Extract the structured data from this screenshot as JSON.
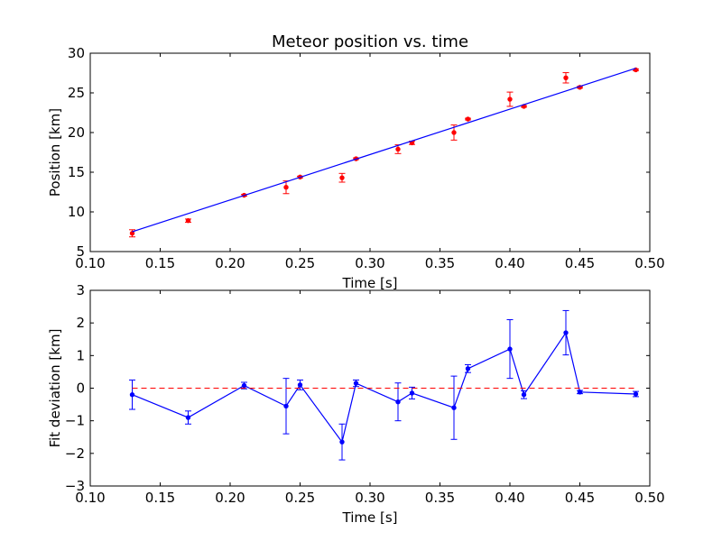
{
  "chart_data": [
    {
      "type": "scatter",
      "title": "Meteor position vs. time",
      "xlabel": "Time [s]",
      "ylabel": "Position [km]",
      "xlim": [
        0.1,
        0.5
      ],
      "ylim": [
        5,
        30
      ],
      "xticks": [
        0.1,
        0.15,
        0.2,
        0.25,
        0.3,
        0.35,
        0.4,
        0.45,
        0.5
      ],
      "xtick_labels": [
        "0.10",
        "0.15",
        "0.20",
        "0.25",
        "0.30",
        "0.35",
        "0.40",
        "0.45",
        "0.50"
      ],
      "yticks": [
        5,
        10,
        15,
        20,
        25,
        30
      ],
      "ytick_labels": [
        "5",
        "10",
        "15",
        "20",
        "25",
        "30"
      ],
      "grid": false,
      "series": [
        {
          "kind": "errorbar",
          "color": "#ff0000",
          "x": [
            0.13,
            0.17,
            0.21,
            0.24,
            0.25,
            0.28,
            0.29,
            0.32,
            0.33,
            0.36,
            0.37,
            0.4,
            0.41,
            0.44,
            0.45,
            0.49
          ],
          "y": [
            7.3,
            8.9,
            12.1,
            13.1,
            14.4,
            14.3,
            16.7,
            17.9,
            18.7,
            20.0,
            21.7,
            24.2,
            23.3,
            26.9,
            25.7,
            27.9
          ],
          "yerr": [
            0.45,
            0.2,
            0.1,
            0.8,
            0.1,
            0.55,
            0.1,
            0.55,
            0.2,
            0.95,
            0.1,
            0.9,
            0.1,
            0.65,
            0.1,
            0.1
          ]
        },
        {
          "kind": "line",
          "color": "#0000ff",
          "x": [
            0.13,
            0.49
          ],
          "y": [
            7.5,
            28.1
          ]
        }
      ]
    },
    {
      "type": "line",
      "xlabel": "Time [s]",
      "ylabel": "Fit deviation [km]",
      "xlim": [
        0.1,
        0.5
      ],
      "ylim": [
        -3,
        3
      ],
      "xticks": [
        0.1,
        0.15,
        0.2,
        0.25,
        0.3,
        0.35,
        0.4,
        0.45,
        0.5
      ],
      "xtick_labels": [
        "0.10",
        "0.15",
        "0.20",
        "0.25",
        "0.30",
        "0.35",
        "0.40",
        "0.45",
        "0.50"
      ],
      "yticks": [
        -3,
        -2,
        -1,
        0,
        1,
        2,
        3
      ],
      "ytick_labels": [
        "−3",
        "−2",
        "−1",
        "0",
        "1",
        "2",
        "3"
      ],
      "grid": false,
      "series": [
        {
          "kind": "errorbar-line",
          "color": "#0000ff",
          "x": [
            0.13,
            0.17,
            0.21,
            0.24,
            0.25,
            0.28,
            0.29,
            0.32,
            0.33,
            0.36,
            0.37,
            0.4,
            0.41,
            0.44,
            0.45,
            0.49
          ],
          "y": [
            -0.2,
            -0.9,
            0.08,
            -0.55,
            0.1,
            -1.65,
            0.15,
            -0.42,
            -0.15,
            -0.6,
            0.6,
            1.2,
            -0.2,
            1.7,
            -0.12,
            -0.18
          ],
          "yerr": [
            0.45,
            0.2,
            0.1,
            0.85,
            0.15,
            0.55,
            0.1,
            0.58,
            0.18,
            0.97,
            0.12,
            0.9,
            0.12,
            0.68,
            0.05,
            0.08
          ]
        },
        {
          "kind": "hline",
          "style": "dashed",
          "color": "#ff0000",
          "x": [
            0.13,
            0.49
          ],
          "y": [
            0,
            0
          ]
        }
      ]
    }
  ]
}
